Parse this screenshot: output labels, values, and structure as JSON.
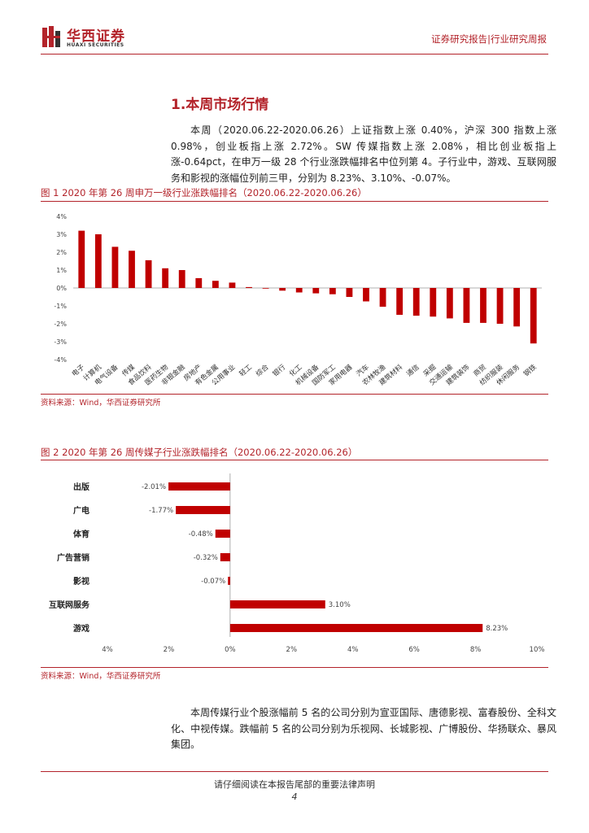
{
  "header": {
    "brand_cn": "华西证券",
    "brand_en": "HUAXI SECURITIES",
    "report_type": "证券研究报告|行业研究周报",
    "brand_color": "#b3232a"
  },
  "section": {
    "title": "1.本周市场行情",
    "paragraph1": "本周（2020.06.22-2020.06.26）上证指数上涨 0.40%，沪深 300 指数上涨 0.98%，创业板指上涨 2.72%。SW 传媒指数上涨 2.08%，相比创业板指上涨-0.64pct，在申万一级 28 个行业涨跌幅排名中位列第 4。子行业中，游戏、互联网服务和影视的涨幅位列前三甲，分别为 8.23%、3.10%、-0.07%。",
    "paragraph2": "本周传媒行业个股涨幅前 5 名的公司分别为宣亚国际、唐德影视、富春股份、全科文化、中视传媒。跌幅前 5 名的公司分别为乐视网、长城影视、广博股份、华扬联众、暴风集团。"
  },
  "figure1": {
    "caption": "图 1 2020 年第 26 周申万一级行业涨跌幅排名（2020.06.22-2020.06.26）",
    "source": "资料来源：Wind，华西证券研究所"
  },
  "figure2": {
    "caption": "图 2 2020 年第 26 周传媒子行业涨跌幅排名（2020.06.22-2020.06.26）",
    "source": "资料来源：Wind，华西证券研究所"
  },
  "chart_data": [
    {
      "type": "bar",
      "orientation": "vertical",
      "categories": [
        "电子",
        "计算机",
        "电气设备",
        "传媒",
        "食品饮料",
        "医药生物",
        "非银金融",
        "房地产",
        "有色金属",
        "公用事业",
        "轻工",
        "综合",
        "银行",
        "化工",
        "机械设备",
        "国防军工",
        "家用电器",
        "汽车",
        "农林牧渔",
        "建筑材料",
        "通信",
        "采掘",
        "交通运输",
        "建筑装饰",
        "商贸",
        "纺织服装",
        "休闲服务",
        "钢铁"
      ],
      "values": [
        3.2,
        3.0,
        2.3,
        2.08,
        1.55,
        1.1,
        1.0,
        0.55,
        0.4,
        0.3,
        0.05,
        0.0,
        -0.15,
        -0.25,
        -0.3,
        -0.35,
        -0.5,
        -0.75,
        -1.05,
        -1.5,
        -1.55,
        -1.6,
        -1.7,
        -1.95,
        -1.95,
        -2.0,
        -2.15,
        -3.1
      ],
      "yticks": [
        "4%",
        "3%",
        "2%",
        "1%",
        "0%",
        "-1%",
        "-2%",
        "-3%",
        "-4%"
      ],
      "ylim": [
        -4,
        4
      ],
      "bar_color": "#c00000"
    },
    {
      "type": "bar",
      "orientation": "horizontal",
      "categories": [
        "出版",
        "广电",
        "体育",
        "广告营销",
        "影视",
        "互联网服务",
        "游戏"
      ],
      "values": [
        -2.01,
        -1.77,
        -0.48,
        -0.32,
        -0.07,
        3.1,
        8.23
      ],
      "data_labels": [
        "-2.01%",
        "-1.77%",
        "-0.48%",
        "-0.32%",
        "-0.07%",
        "3.10%",
        "8.23%"
      ],
      "xticks": [
        "4%",
        "2%",
        "0%",
        "2%",
        "4%",
        "6%",
        "8%",
        "10%"
      ],
      "xlim": [
        -4,
        10
      ],
      "bar_color": "#c00000"
    }
  ],
  "footer": {
    "notice": "请仔细阅读在本报告尾部的重要法律声明",
    "page_number": "4"
  }
}
